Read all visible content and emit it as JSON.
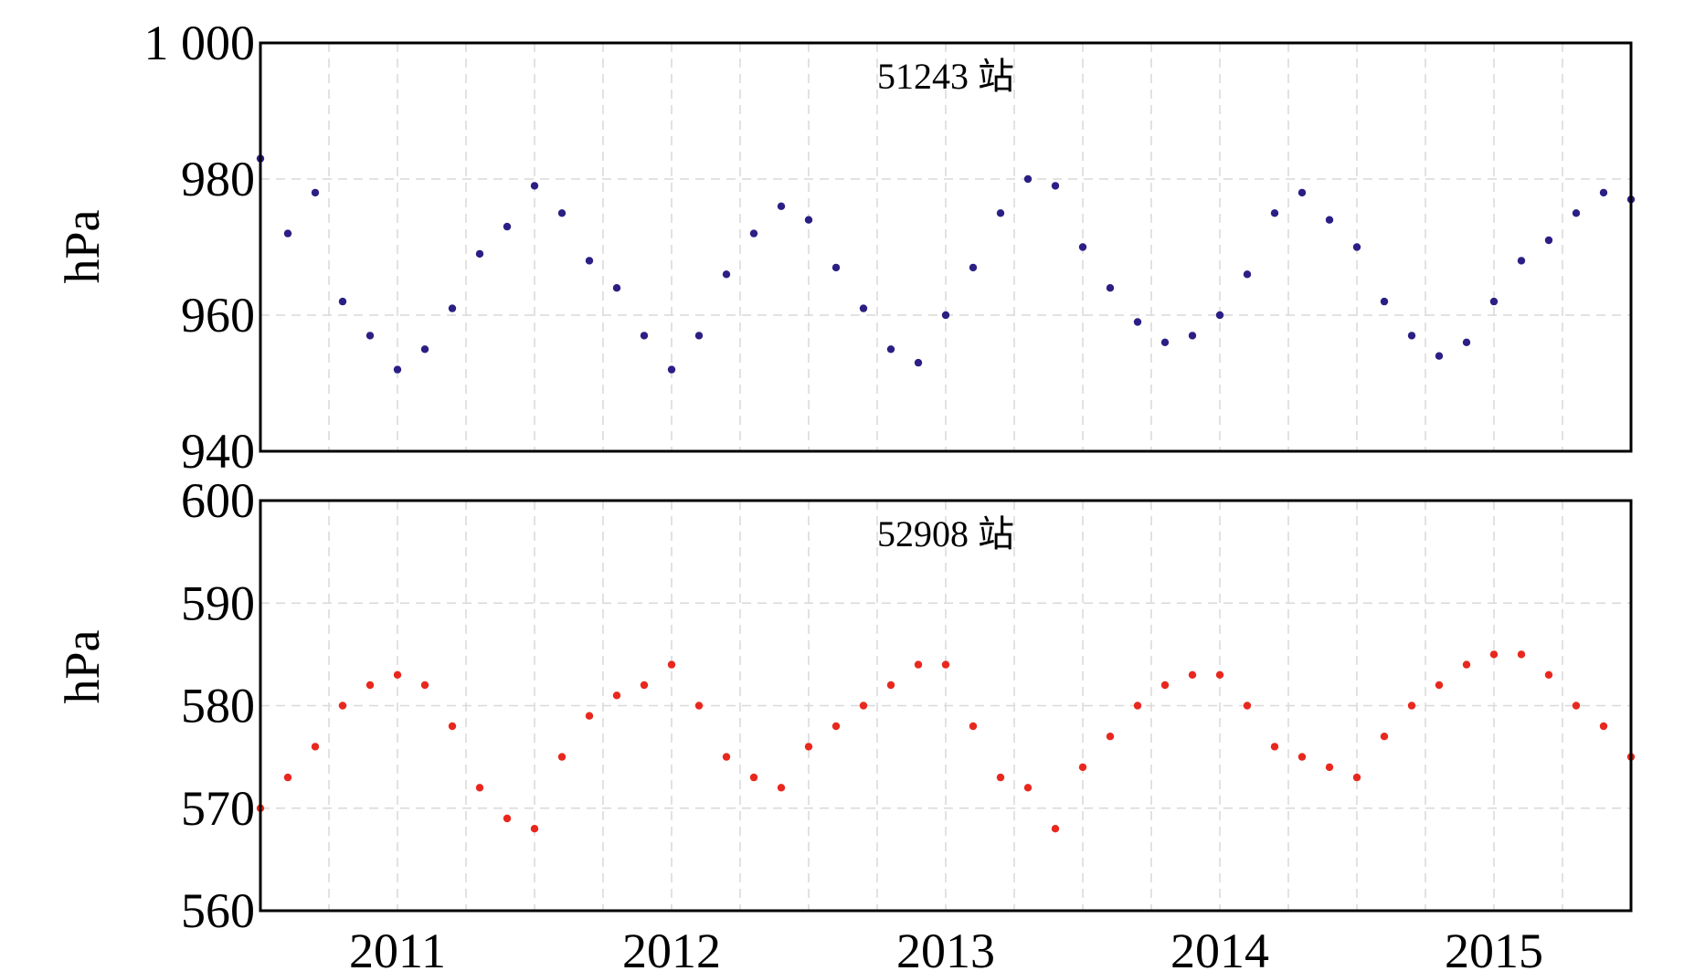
{
  "chart_data": [
    {
      "type": "scatter",
      "title": "51243 站",
      "xlabel": "",
      "ylabel": "hPa",
      "xlim": [
        2010.5,
        2015.5
      ],
      "ylim": [
        940,
        1000
      ],
      "yticks": [
        940,
        960,
        980,
        1000
      ],
      "ytick_labels": [
        "940",
        "960",
        "980",
        "1 000"
      ],
      "grid": true,
      "color": "#2b1f85",
      "series": [
        {
          "name": "51243",
          "x": [
            2010.5,
            2010.6,
            2010.7,
            2010.8,
            2010.9,
            2011.0,
            2011.1,
            2011.2,
            2011.3,
            2011.4,
            2011.5,
            2011.6,
            2011.7,
            2011.8,
            2011.9,
            2012.0,
            2012.1,
            2012.2,
            2012.3,
            2012.4,
            2012.5,
            2012.6,
            2012.7,
            2012.8,
            2012.9,
            2013.0,
            2013.1,
            2013.2,
            2013.3,
            2013.4,
            2013.5,
            2013.6,
            2013.7,
            2013.8,
            2013.9,
            2014.0,
            2014.1,
            2014.2,
            2014.3,
            2014.4,
            2014.5,
            2014.6,
            2014.7,
            2014.8,
            2014.9,
            2015.0,
            2015.1,
            2015.2,
            2015.3,
            2015.4,
            2015.5
          ],
          "values": [
            983,
            972,
            978,
            962,
            957,
            952,
            955,
            961,
            969,
            973,
            979,
            975,
            968,
            964,
            957,
            952,
            957,
            966,
            972,
            976,
            974,
            967,
            961,
            955,
            953,
            960,
            967,
            975,
            980,
            979,
            970,
            964,
            959,
            956,
            957,
            960,
            966,
            975,
            978,
            974,
            970,
            962,
            957,
            954,
            956,
            962,
            968,
            971,
            975,
            978,
            977
          ]
        }
      ]
    },
    {
      "type": "scatter",
      "title": "52908 站",
      "xlabel": "",
      "ylabel": "hPa",
      "xlim": [
        2010.5,
        2015.5
      ],
      "ylim": [
        560,
        600
      ],
      "yticks": [
        560,
        570,
        580,
        590,
        600
      ],
      "ytick_labels": [
        "560",
        "570",
        "580",
        "590",
        "600"
      ],
      "xticks": [
        2011,
        2012,
        2013,
        2014,
        2015
      ],
      "xtick_labels": [
        "2011",
        "2012",
        "2013",
        "2014",
        "2015"
      ],
      "grid": true,
      "color": "#e8281e",
      "series": [
        {
          "name": "52908",
          "x": [
            2010.5,
            2010.6,
            2010.7,
            2010.8,
            2010.9,
            2011.0,
            2011.1,
            2011.2,
            2011.3,
            2011.4,
            2011.5,
            2011.6,
            2011.7,
            2011.8,
            2011.9,
            2012.0,
            2012.1,
            2012.2,
            2012.3,
            2012.4,
            2012.5,
            2012.6,
            2012.7,
            2012.8,
            2012.9,
            2013.0,
            2013.1,
            2013.2,
            2013.3,
            2013.4,
            2013.5,
            2013.6,
            2013.7,
            2013.8,
            2013.9,
            2014.0,
            2014.1,
            2014.2,
            2014.3,
            2014.4,
            2014.5,
            2014.6,
            2014.7,
            2014.8,
            2014.9,
            2015.0,
            2015.1,
            2015.2,
            2015.3,
            2015.4,
            2015.5
          ],
          "values": [
            570,
            573,
            576,
            580,
            582,
            583,
            582,
            578,
            572,
            569,
            568,
            575,
            579,
            581,
            582,
            584,
            580,
            575,
            573,
            572,
            576,
            578,
            580,
            582,
            584,
            584,
            578,
            573,
            572,
            568,
            574,
            577,
            580,
            582,
            583,
            583,
            580,
            576,
            575,
            574,
            573,
            577,
            580,
            582,
            584,
            585,
            585,
            583,
            580,
            578,
            575
          ]
        }
      ]
    }
  ]
}
